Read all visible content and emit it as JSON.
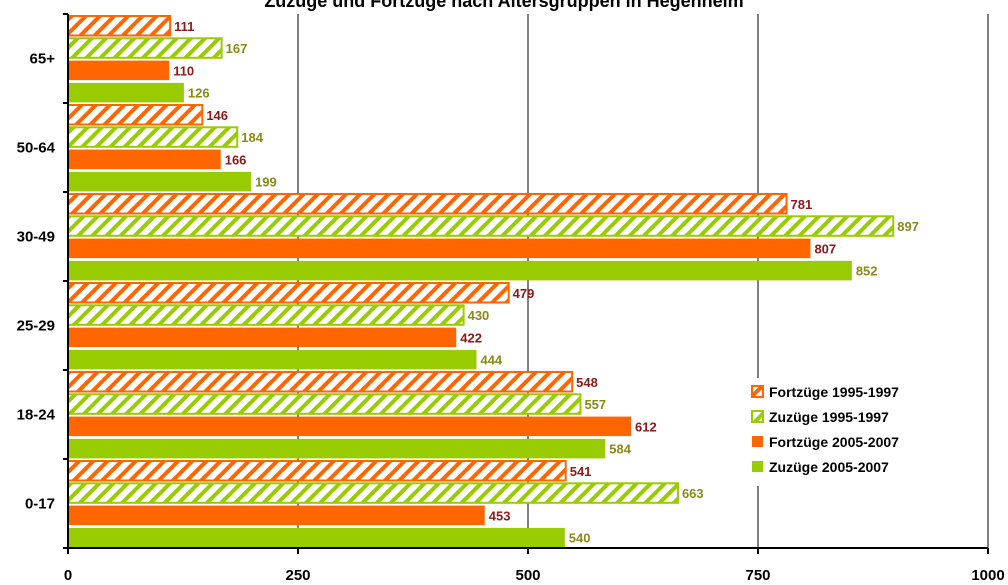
{
  "title": "Zuzüge und Fortzüge nach Altersgruppen in Hegenheim",
  "chart_data": {
    "type": "bar",
    "orientation": "horizontal",
    "categories": [
      "65+",
      "50-64",
      "30-49",
      "25-29",
      "18-24",
      "0-17"
    ],
    "series": [
      {
        "name": "Fortzüge 1995-1997",
        "values": [
          111,
          146,
          781,
          479,
          548,
          541
        ],
        "style": "hatched",
        "color": "#ff6600",
        "label_color": "#8b1a1a"
      },
      {
        "name": "Zuzüge 1995-1997",
        "values": [
          167,
          184,
          897,
          430,
          557,
          663
        ],
        "style": "hatched",
        "color": "#99cc00",
        "label_color": "#8a8a18"
      },
      {
        "name": "Fortzüge 2005-2007",
        "values": [
          110,
          166,
          807,
          422,
          612,
          453
        ],
        "style": "solid",
        "color": "#ff6600",
        "label_color": "#8b1a1a"
      },
      {
        "name": "Zuzüge 2005-2007",
        "values": [
          126,
          199,
          852,
          444,
          584,
          540
        ],
        "style": "solid",
        "color": "#99cc00",
        "label_color": "#8a8a18"
      }
    ],
    "xlim": [
      0,
      1000
    ],
    "xticks": [
      "0",
      "250",
      "500",
      "750",
      "1000"
    ],
    "grid": "vertical",
    "legend_position": "right"
  }
}
